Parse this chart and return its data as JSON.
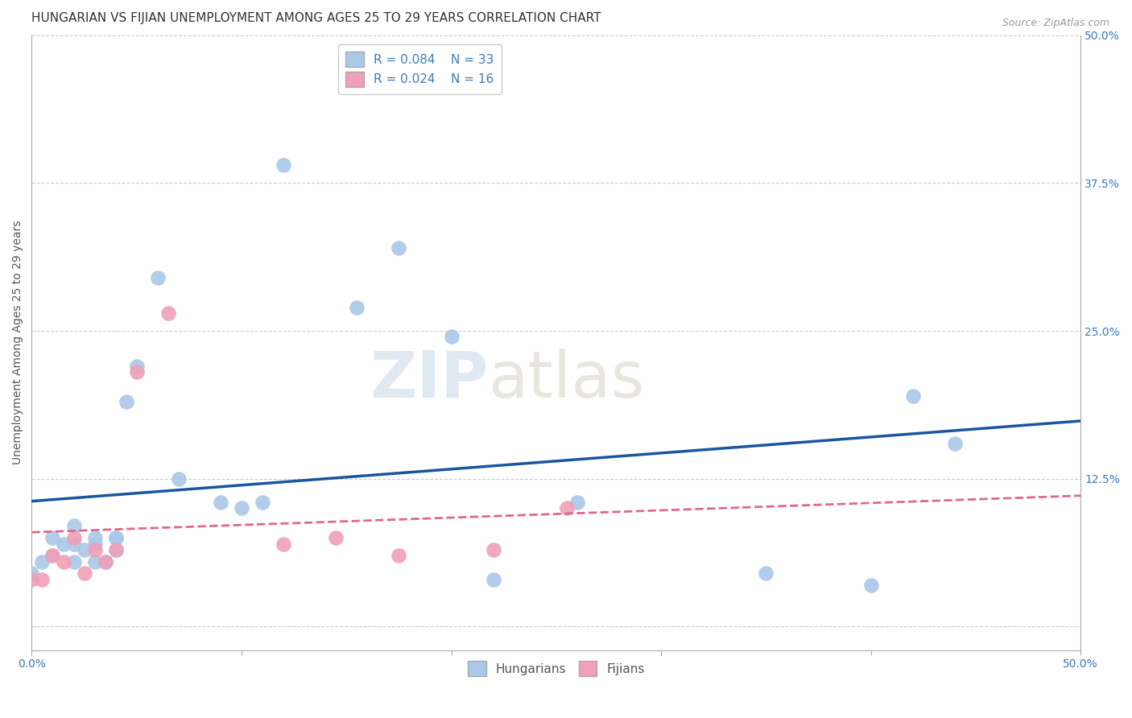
{
  "title": "HUNGARIAN VS FIJIAN UNEMPLOYMENT AMONG AGES 25 TO 29 YEARS CORRELATION CHART",
  "source": "Source: ZipAtlas.com",
  "ylabel": "Unemployment Among Ages 25 to 29 years",
  "xlim": [
    0.0,
    0.5
  ],
  "ylim": [
    -0.02,
    0.5
  ],
  "yticks": [
    0.0,
    0.125,
    0.25,
    0.375,
    0.5
  ],
  "xticks": [
    0.0,
    0.1,
    0.2,
    0.3,
    0.4,
    0.5
  ],
  "right_yticklabels": [
    "",
    "12.5%",
    "25.0%",
    "37.5%",
    "50.0%"
  ],
  "xticklabels": [
    "0.0%",
    "",
    "",
    "",
    "",
    "50.0%"
  ],
  "hungarian_R": "0.084",
  "hungarian_N": "33",
  "fijian_R": "0.024",
  "fijian_N": "16",
  "hungarian_color": "#aac8e8",
  "fijian_color": "#f0a0b8",
  "hungarian_line_color": "#1a55a0",
  "fijian_line_color": "#e06888",
  "background_color": "#ffffff",
  "grid_color": "#cccccc",
  "hungarian_x": [
    0.0,
    0.005,
    0.01,
    0.01,
    0.015,
    0.02,
    0.02,
    0.02,
    0.025,
    0.03,
    0.03,
    0.03,
    0.035,
    0.04,
    0.04,
    0.04,
    0.045,
    0.05,
    0.06,
    0.07,
    0.09,
    0.1,
    0.11,
    0.12,
    0.155,
    0.175,
    0.2,
    0.22,
    0.26,
    0.35,
    0.4,
    0.42,
    0.44
  ],
  "hungarian_y": [
    0.045,
    0.055,
    0.06,
    0.075,
    0.07,
    0.055,
    0.07,
    0.085,
    0.065,
    0.055,
    0.07,
    0.075,
    0.055,
    0.065,
    0.075,
    0.075,
    0.19,
    0.22,
    0.295,
    0.125,
    0.105,
    0.1,
    0.105,
    0.39,
    0.27,
    0.32,
    0.245,
    0.04,
    0.105,
    0.045,
    0.035,
    0.195,
    0.155
  ],
  "fijian_x": [
    0.0,
    0.005,
    0.01,
    0.015,
    0.02,
    0.025,
    0.03,
    0.035,
    0.04,
    0.05,
    0.065,
    0.12,
    0.145,
    0.175,
    0.22,
    0.255
  ],
  "fijian_y": [
    0.04,
    0.04,
    0.06,
    0.055,
    0.075,
    0.045,
    0.065,
    0.055,
    0.065,
    0.215,
    0.265,
    0.07,
    0.075,
    0.06,
    0.065,
    0.1
  ],
  "watermark_zip": "ZIP",
  "watermark_atlas": "atlas",
  "title_fontsize": 11,
  "axis_label_fontsize": 10,
  "tick_fontsize": 10,
  "legend_fontsize": 11
}
